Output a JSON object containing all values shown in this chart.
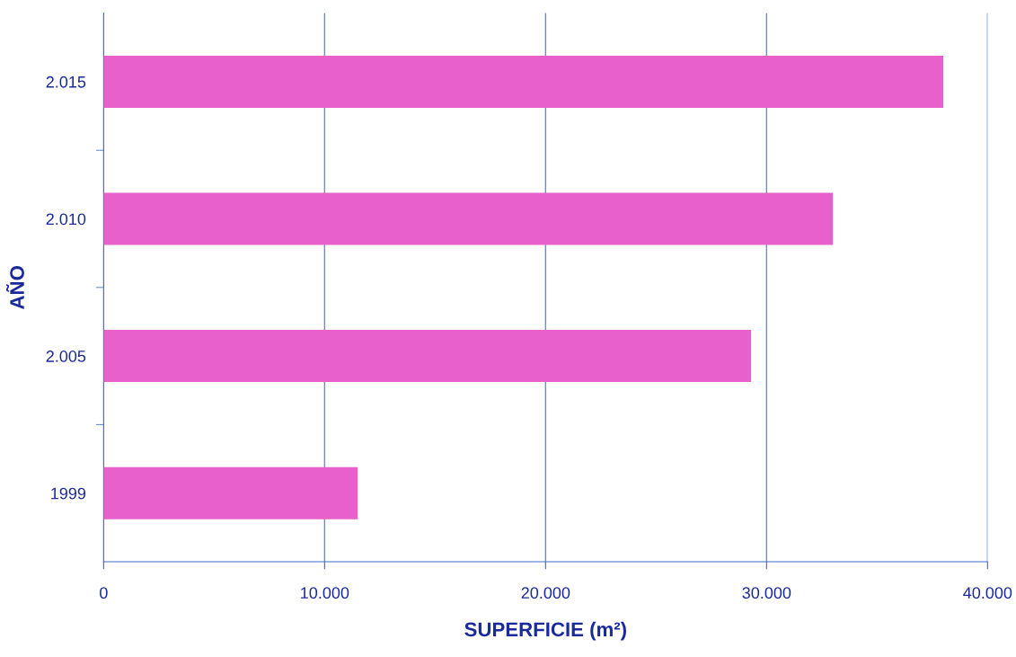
{
  "chart_data": {
    "type": "bar",
    "orientation": "horizontal",
    "xlabel": "SUPERFICIE (m²)",
    "ylabel": "AÑO",
    "categories": [
      "2.015",
      "2.010",
      "2.005",
      "1999"
    ],
    "values": [
      38000,
      33000,
      29300,
      11500
    ],
    "color": "#e860cc",
    "xlim": [
      0,
      40000
    ],
    "xticks": [
      0,
      {
        "value": 10000,
        "label": "10.000"
      },
      {
        "value": 20000,
        "label": "20.000"
      },
      {
        "value": 30000,
        "label": "30.000"
      },
      {
        "value": 40000,
        "label": "40.000"
      }
    ],
    "grid": "x"
  }
}
